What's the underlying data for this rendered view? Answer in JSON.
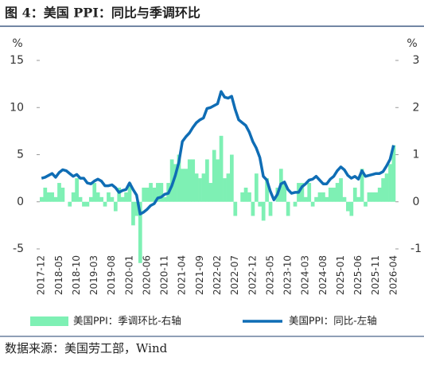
{
  "chart_data": {
    "type": "bar-line",
    "title": "图 4：美国 PPI：同比与季调环比",
    "source": "数据来源：美国劳工部，Wind",
    "ylabel": "%",
    "y2label": "%",
    "ylim": [
      -5,
      15
    ],
    "yticks": [
      -5,
      0,
      5,
      10,
      15
    ],
    "y2lim": [
      -1,
      3
    ],
    "y2ticks": [
      -1,
      0,
      1,
      2,
      3
    ],
    "categories": [
      "2017-12",
      null,
      null,
      null,
      null,
      "2018-05",
      null,
      null,
      null,
      null,
      "2018-10",
      null,
      null,
      null,
      null,
      "2019-03",
      null,
      null,
      null,
      null,
      "2019-08",
      null,
      null,
      null,
      null,
      "2020-01",
      null,
      null,
      null,
      null,
      "2020-06",
      null,
      null,
      null,
      null,
      "2020-11",
      null,
      null,
      null,
      null,
      "2021-04",
      null,
      null,
      null,
      null,
      "2021-09",
      null,
      null,
      null,
      null,
      "2022-02",
      null,
      null,
      null,
      null,
      "2022-07",
      null,
      null,
      null,
      null,
      "2022-12",
      null,
      null,
      null,
      null,
      "2023-05",
      null,
      null,
      null,
      null,
      "2023-10",
      null,
      null,
      null,
      null,
      "2024-03",
      null,
      null,
      null,
      null,
      "2024-08",
      null,
      null,
      null,
      null,
      "2025-01",
      null,
      null,
      null,
      null,
      "2025-06",
      null,
      null,
      null,
      null,
      "2025-11",
      null,
      null,
      null,
      null,
      "2026-04"
    ],
    "series": [
      {
        "name": "美国PPI：季调环比-右轴",
        "type": "bar",
        "axis": "y2",
        "color": "#7ef0b4",
        "values": [
          0.1,
          0.3,
          0.2,
          0.2,
          0.1,
          0.4,
          0.3,
          0.0,
          -0.1,
          0.2,
          0.5,
          0.1,
          -0.1,
          -0.1,
          0.1,
          0.4,
          0.2,
          0.1,
          -0.1,
          0.2,
          0.1,
          -0.2,
          0.3,
          0.1,
          0.2,
          0.4,
          -0.5,
          -0.3,
          -1.3,
          0.3,
          0.3,
          0.4,
          0.3,
          0.4,
          0.4,
          0.1,
          0.4,
          0.9,
          0.8,
          1.0,
          0.7,
          0.7,
          0.9,
          0.9,
          0.6,
          0.5,
          0.6,
          0.9,
          0.4,
          1.1,
          0.9,
          1.4,
          0.5,
          0.6,
          1.0,
          -0.3,
          0.0,
          0.2,
          0.3,
          0.2,
          -0.3,
          0.6,
          -0.1,
          -0.4,
          0.5,
          -0.3,
          0.0,
          0.3,
          0.7,
          0.4,
          -0.3,
          0.0,
          -0.1,
          0.4,
          0.4,
          0.1,
          0.4,
          -0.1,
          0.1,
          0.2,
          0.2,
          0.1,
          0.3,
          0.3,
          0.4,
          0.5,
          0.1,
          -0.2,
          -0.3,
          0.3,
          0.1,
          0.7,
          -0.1,
          0.2,
          0.2,
          0.2,
          0.3,
          0.5,
          0.6,
          0.8,
          1.2
        ]
      },
      {
        "name": "美国PPI：同比-左轴",
        "type": "line",
        "color": "#0f6db5",
        "values": [
          2.5,
          2.6,
          2.8,
          3.0,
          2.6,
          3.1,
          3.4,
          3.3,
          3.0,
          2.7,
          2.9,
          2.5,
          2.5,
          2.0,
          1.9,
          2.2,
          2.4,
          2.2,
          1.7,
          1.7,
          1.8,
          1.5,
          1.0,
          1.2,
          1.3,
          2.0,
          1.3,
          0.7,
          -1.3,
          -1.1,
          -0.8,
          -0.4,
          -0.2,
          0.4,
          0.5,
          0.8,
          0.9,
          1.7,
          2.8,
          4.2,
          6.4,
          6.9,
          7.3,
          7.9,
          8.4,
          8.7,
          8.9,
          9.9,
          10.0,
          10.2,
          10.4,
          11.7,
          11.1,
          11.0,
          11.2,
          9.8,
          8.7,
          8.4,
          8.1,
          7.4,
          6.4,
          5.7,
          4.7,
          2.7,
          2.3,
          1.1,
          0.2,
          0.8,
          1.9,
          2.1,
          1.3,
          0.9,
          1.0,
          1.0,
          1.6,
          1.9,
          2.3,
          2.4,
          2.7,
          2.3,
          1.9,
          1.9,
          2.4,
          2.7,
          3.3,
          3.7,
          3.4,
          2.8,
          2.5,
          2.7,
          2.4,
          3.3,
          2.7,
          2.8,
          2.9,
          3.0,
          3.0,
          3.2,
          3.8,
          4.5,
          6.0
        ]
      }
    ]
  }
}
